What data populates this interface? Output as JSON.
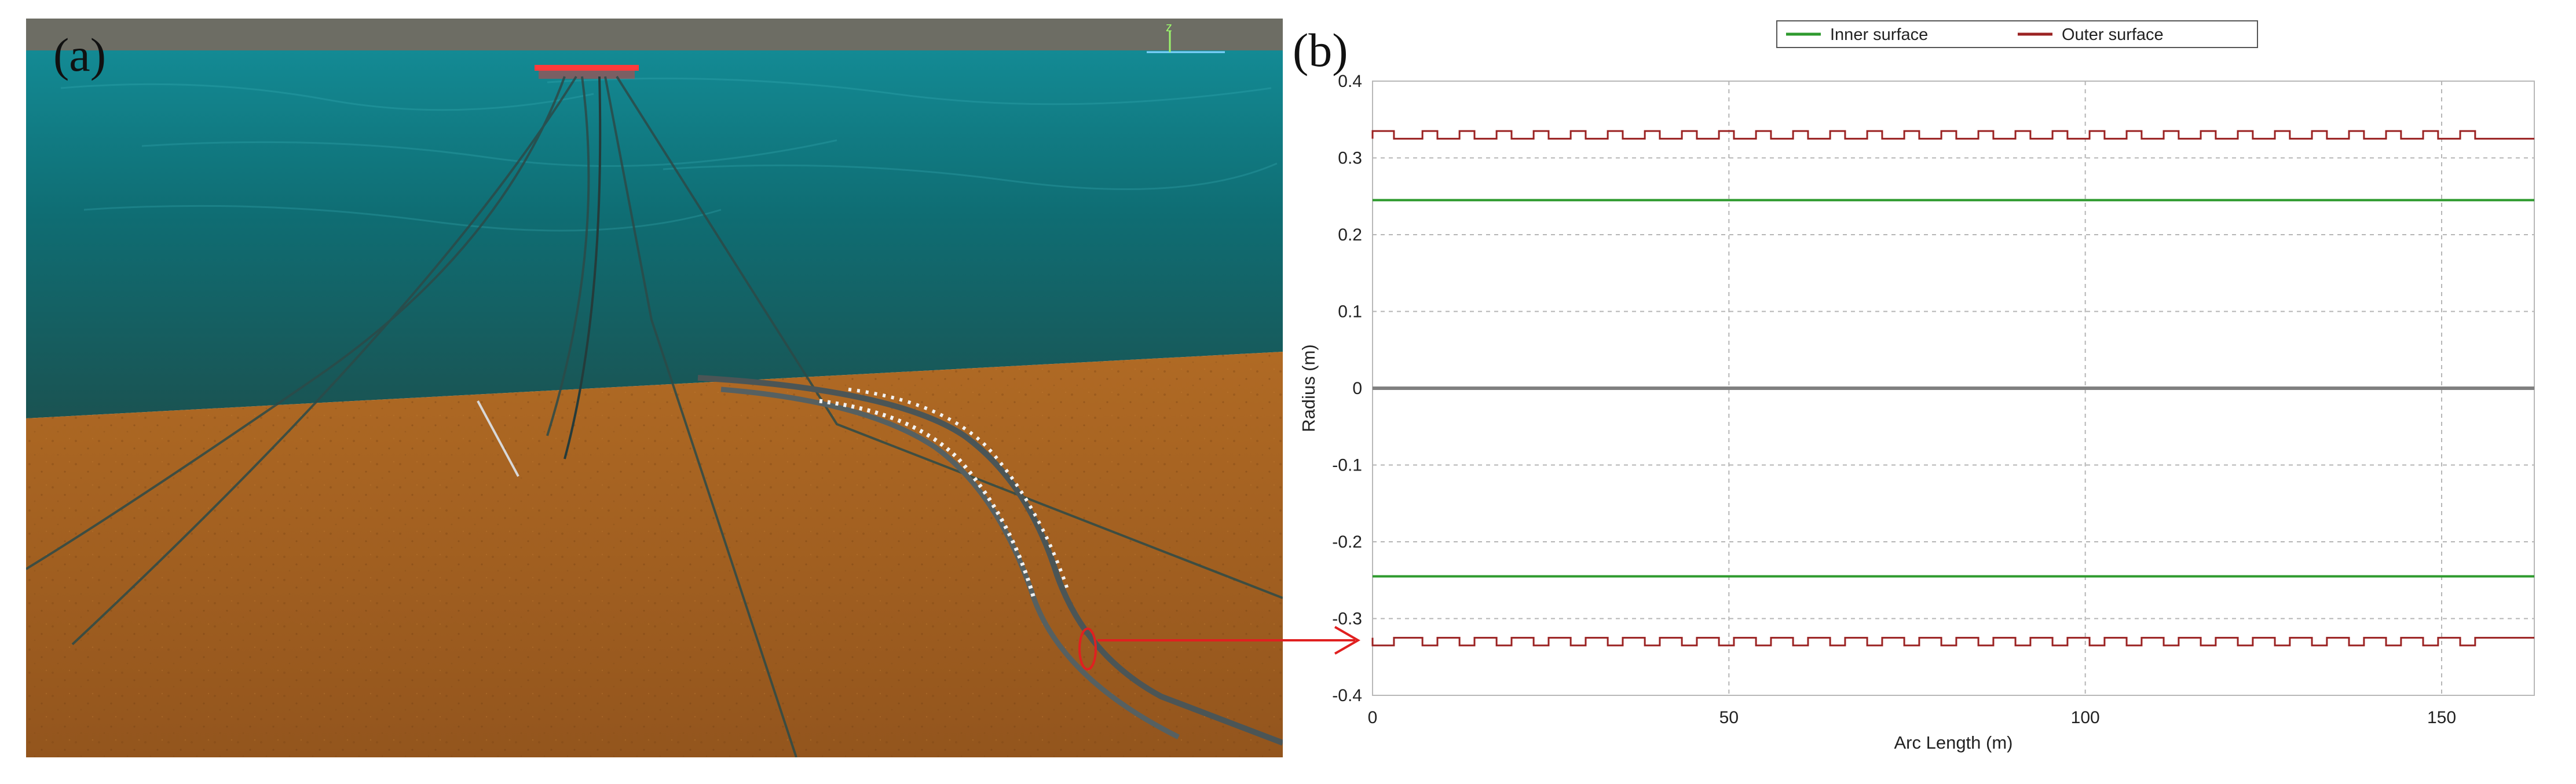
{
  "panels": {
    "a_label": "(a)",
    "b_label": "(b)"
  },
  "colors": {
    "sea_surface": "#0f6b74",
    "sea_deep": "#1b5453",
    "seabed": "#a05d1e",
    "sky_band": "#6b6b62",
    "inner": "#2e9a2e",
    "outer": "#9b2222",
    "axis_line": "#808080",
    "annotation_red": "#e02020"
  },
  "chart_data": {
    "type": "line",
    "xlabel": "Arc Length (m)",
    "ylabel": "Radius (m)",
    "xlim": [
      0,
      163
    ],
    "ylim": [
      -0.4,
      0.4
    ],
    "x_ticks": [
      0,
      50,
      100,
      150
    ],
    "y_ticks": [
      0.4,
      0.3,
      0.2,
      0.1,
      0,
      -0.1,
      -0.2,
      -0.3,
      -0.4
    ],
    "grid": true,
    "legend": "top-center",
    "series": [
      {
        "name": "Inner surface",
        "values": [
          {
            "x": 0,
            "y": 0.245
          },
          {
            "x": 163,
            "y": 0.245
          }
        ],
        "mirrored": true
      },
      {
        "name": "Outer surface",
        "base_radius": 0.325,
        "bump_radius": 0.335,
        "start_bump": [
          0,
          3
        ],
        "bump_start_x": 7,
        "bump_spacing": 5.2,
        "bump_width": 2.1,
        "bump_end_x": 157,
        "mirrored": true
      }
    ]
  }
}
